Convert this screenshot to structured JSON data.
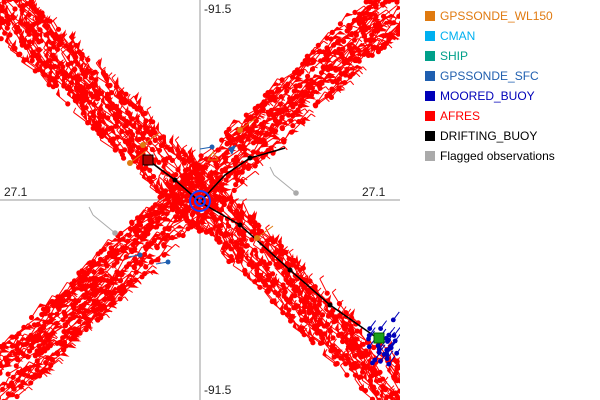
{
  "map": {
    "axis_labels": {
      "top": "-91.5",
      "bottom": "-91.5",
      "left": "27.1",
      "right": "27.1"
    },
    "colors": {
      "afres": "#ff0000",
      "drifting_track": "#000000",
      "moored": "#0000b8",
      "gps_wl150": "#e07a10",
      "gps_sfc": "#1f5fb0",
      "flagged": "#aaaaaa",
      "center_marker": "#1a3cff"
    }
  },
  "legend": [
    {
      "label": "GPSSONDE_WL150",
      "color": "#e07a10"
    },
    {
      "label": "CMAN",
      "color": "#00b0f0"
    },
    {
      "label": "SHIP",
      "color": "#00a08a"
    },
    {
      "label": "GPSSONDE_SFC",
      "color": "#1f5fb0"
    },
    {
      "label": "MOORED_BUOY",
      "color": "#0000b8"
    },
    {
      "label": "AFRES",
      "color": "#ff0000"
    },
    {
      "label": "DRIFTING_BUOY",
      "color": "#000000"
    },
    {
      "label": "Flagged observations",
      "color": "#aaaaaa"
    }
  ]
}
